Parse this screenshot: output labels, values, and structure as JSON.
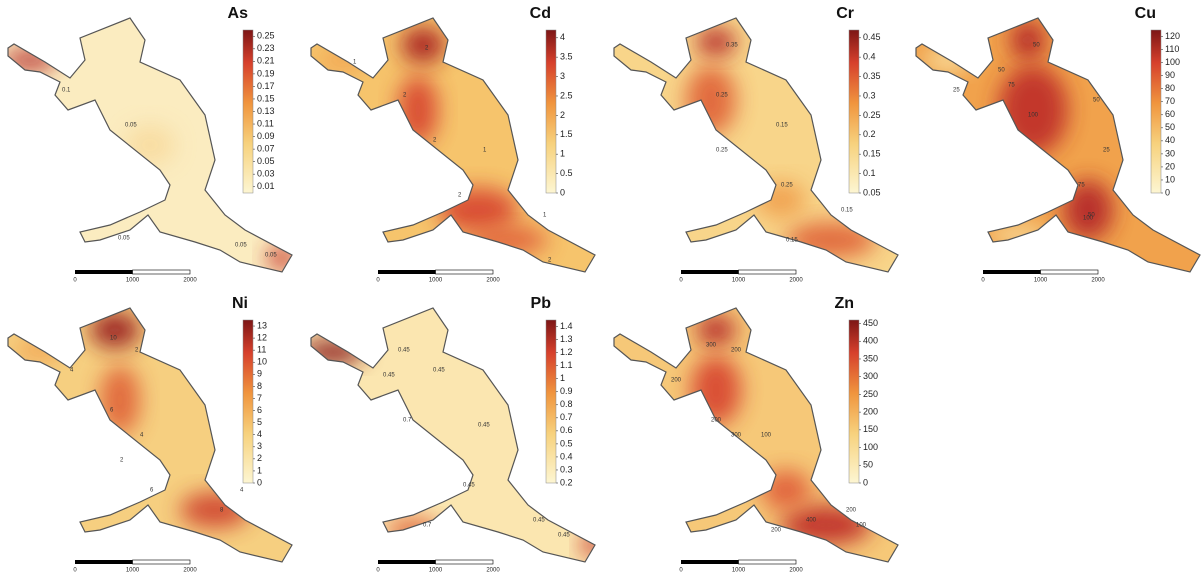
{
  "panels": [
    {
      "element": "As",
      "colorbar": {
        "range": [
          0,
          0.26
        ],
        "ticks": [
          0.01,
          0.03,
          0.05,
          0.07,
          0.09,
          0.11,
          0.13,
          0.15,
          0.17,
          0.19,
          0.21,
          0.23,
          0.25
        ]
      },
      "contour_labels": [
        0.1,
        0.05,
        0.05,
        0.05,
        0.05
      ]
    },
    {
      "element": "Cd",
      "colorbar": {
        "range": [
          0,
          4.2
        ],
        "ticks": [
          0,
          0.5,
          1,
          1.5,
          2,
          2.5,
          3,
          3.5,
          4
        ]
      },
      "contour_labels": [
        2,
        1,
        2,
        2,
        1,
        2,
        1,
        2
      ]
    },
    {
      "element": "Cr",
      "colorbar": {
        "range": [
          0.05,
          0.47
        ],
        "ticks": [
          0.05,
          0.1,
          0.15,
          0.2,
          0.25,
          0.3,
          0.35,
          0.4,
          0.45
        ]
      },
      "contour_labels": [
        0.35,
        0.25,
        0.15,
        0.25,
        0.25,
        0.15,
        0.15
      ]
    },
    {
      "element": "Cu",
      "colorbar": {
        "range": [
          0,
          125
        ],
        "ticks": [
          0,
          10,
          20,
          30,
          40,
          50,
          60,
          70,
          80,
          90,
          100,
          110,
          120
        ]
      },
      "contour_labels": [
        50,
        50,
        75,
        25,
        100,
        50,
        25,
        75,
        50,
        100
      ]
    },
    {
      "element": "Ni",
      "colorbar": {
        "range": [
          0,
          13.5
        ],
        "ticks": [
          0,
          1,
          2,
          3,
          4,
          5,
          6,
          7,
          8,
          9,
          10,
          11,
          12,
          13
        ]
      },
      "contour_labels": [
        10,
        2,
        4,
        6,
        4,
        2,
        6,
        8,
        4
      ]
    },
    {
      "element": "Pb",
      "colorbar": {
        "range": [
          0.2,
          1.45
        ],
        "ticks": [
          0.2,
          0.3,
          0.4,
          0.5,
          0.6,
          0.7,
          0.8,
          0.9,
          1,
          1.1,
          1.2,
          1.3,
          1.4
        ]
      },
      "contour_labels": [
        0.45,
        0.45,
        0.45,
        0.7,
        0.45,
        0.45,
        0.7,
        0.45,
        0.45
      ]
    },
    {
      "element": "Zn",
      "colorbar": {
        "range": [
          0,
          460
        ],
        "ticks": [
          0,
          50,
          100,
          150,
          200,
          250,
          300,
          350,
          400,
          450
        ]
      },
      "contour_labels": [
        300,
        200,
        200,
        200,
        300,
        100,
        400,
        200,
        100,
        200
      ]
    }
  ],
  "scale_bar": {
    "ticks": [
      0,
      1000,
      2000
    ]
  }
}
